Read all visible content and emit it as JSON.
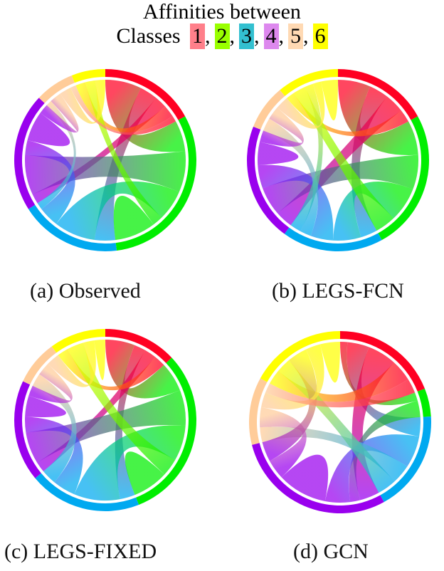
{
  "title_line1": "Affinities between",
  "legend": {
    "prefix": "Classes",
    "separator": ",",
    "classes": [
      {
        "label": "1",
        "swatch": "#ff7f8a",
        "color": "#ff0022"
      },
      {
        "label": "2",
        "swatch": "#99ff00",
        "color": "#00ee00"
      },
      {
        "label": "3",
        "swatch": "#33c0d0",
        "color": "#00a9f0"
      },
      {
        "label": "4",
        "swatch": "#dd88ee",
        "color": "#9900ee"
      },
      {
        "label": "5",
        "swatch": "#ffd9b3",
        "color": "#ffcc99"
      },
      {
        "label": "6",
        "swatch": "#ffff00",
        "color": "#ffff00"
      }
    ]
  },
  "panels": [
    {
      "caption": "(a) Observed",
      "group_shares": [
        17,
        31,
        18,
        21,
        7,
        6
      ],
      "chords": [
        [
          1,
          2,
          6
        ],
        [
          1,
          3,
          3
        ],
        [
          1,
          4,
          2
        ],
        [
          1,
          6,
          2
        ],
        [
          2,
          4,
          8
        ],
        [
          2,
          3,
          6
        ],
        [
          2,
          6,
          2
        ],
        [
          2,
          2,
          4
        ],
        [
          3,
          4,
          3
        ],
        [
          3,
          5,
          1
        ],
        [
          4,
          4,
          3
        ],
        [
          4,
          5,
          2
        ],
        [
          5,
          6,
          2
        ],
        [
          1,
          5,
          1
        ]
      ]
    },
    {
      "caption": "(b) LEGS-FCN",
      "group_shares": [
        17,
        25,
        18,
        21,
        8,
        11
      ],
      "chords": [
        [
          1,
          2,
          5
        ],
        [
          1,
          3,
          3
        ],
        [
          1,
          4,
          3
        ],
        [
          1,
          6,
          2
        ],
        [
          2,
          4,
          5
        ],
        [
          2,
          3,
          5
        ],
        [
          2,
          6,
          3
        ],
        [
          3,
          4,
          4
        ],
        [
          3,
          5,
          2
        ],
        [
          3,
          6,
          2
        ],
        [
          4,
          4,
          2
        ],
        [
          4,
          5,
          2
        ],
        [
          5,
          6,
          2
        ],
        [
          6,
          6,
          2
        ]
      ]
    },
    {
      "caption": "(c) LEGS-FIXED",
      "group_shares": [
        13,
        31,
        20,
        18,
        8,
        10
      ],
      "chords": [
        [
          1,
          2,
          5
        ],
        [
          1,
          3,
          2
        ],
        [
          1,
          4,
          2
        ],
        [
          1,
          6,
          2
        ],
        [
          2,
          4,
          6
        ],
        [
          2,
          3,
          6
        ],
        [
          2,
          6,
          3
        ],
        [
          2,
          2,
          3
        ],
        [
          3,
          4,
          3
        ],
        [
          3,
          5,
          2
        ],
        [
          4,
          4,
          2
        ],
        [
          4,
          5,
          2
        ],
        [
          5,
          6,
          2
        ],
        [
          6,
          6,
          1
        ]
      ]
    },
    {
      "caption": "(d) GCN",
      "group_shares": [
        19,
        5,
        18,
        29,
        12,
        17
      ],
      "chords": [
        [
          1,
          2,
          1
        ],
        [
          1,
          3,
          3
        ],
        [
          1,
          4,
          4
        ],
        [
          1,
          6,
          3
        ],
        [
          2,
          4,
          2
        ],
        [
          3,
          4,
          5
        ],
        [
          3,
          5,
          3
        ],
        [
          3,
          6,
          3
        ],
        [
          4,
          4,
          5
        ],
        [
          4,
          5,
          4
        ],
        [
          4,
          6,
          4
        ],
        [
          5,
          6,
          3
        ],
        [
          6,
          6,
          2
        ],
        [
          1,
          5,
          2
        ]
      ]
    }
  ]
}
